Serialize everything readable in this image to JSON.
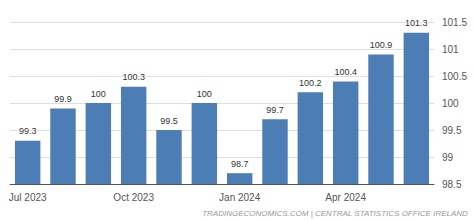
{
  "chart_data": {
    "type": "bar",
    "categories": [
      "Jul 2023",
      null,
      null,
      "Oct 2023",
      null,
      null,
      "Jan 2024",
      null,
      null,
      "Apr 2024",
      null,
      null
    ],
    "values": [
      99.3,
      99.9,
      100.0,
      100.3,
      99.5,
      100.0,
      98.7,
      99.7,
      100.2,
      100.4,
      100.9,
      101.3
    ],
    "color": "#4d7db5",
    "ylim": [
      98.5,
      101.5
    ],
    "yticks": [
      98.5,
      99.0,
      99.5,
      100.0,
      100.5,
      101.0,
      101.5
    ],
    "grid": true,
    "data_labels": true,
    "annotation": "TRADINGECONOMICS.COM | CENTRAL STATISTICS OFFICE IRELAND"
  }
}
